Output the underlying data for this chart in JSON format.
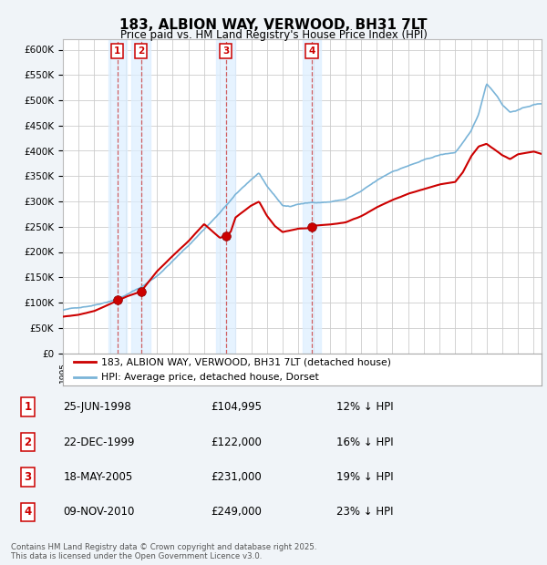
{
  "title": "183, ALBION WAY, VERWOOD, BH31 7LT",
  "subtitle": "Price paid vs. HM Land Registry's House Price Index (HPI)",
  "ylim": [
    0,
    620000
  ],
  "xlim_start": 1995.0,
  "xlim_end": 2025.5,
  "sale_points": [
    {
      "label": "1",
      "date": 1998.479,
      "price": 104995
    },
    {
      "label": "2",
      "date": 1999.979,
      "price": 122000
    },
    {
      "label": "3",
      "date": 2005.38,
      "price": 231000
    },
    {
      "label": "4",
      "date": 2010.854,
      "price": 249000
    }
  ],
  "hpi_color": "#7ab4d8",
  "price_color": "#cc0000",
  "background_color": "#f0f4f8",
  "vline_fill_color": "#dceeff",
  "legend_entries": [
    "183, ALBION WAY, VERWOOD, BH31 7LT (detached house)",
    "HPI: Average price, detached house, Dorset"
  ],
  "table_rows": [
    {
      "num": "1",
      "date": "25-JUN-1998",
      "price": "£104,995",
      "pct": "12% ↓ HPI"
    },
    {
      "num": "2",
      "date": "22-DEC-1999",
      "price": "£122,000",
      "pct": "16% ↓ HPI"
    },
    {
      "num": "3",
      "date": "18-MAY-2005",
      "price": "£231,000",
      "pct": "19% ↓ HPI"
    },
    {
      "num": "4",
      "date": "09-NOV-2010",
      "price": "£249,000",
      "pct": "23% ↓ HPI"
    }
  ],
  "footer": "Contains HM Land Registry data © Crown copyright and database right 2025.\nThis data is licensed under the Open Government Licence v3.0."
}
